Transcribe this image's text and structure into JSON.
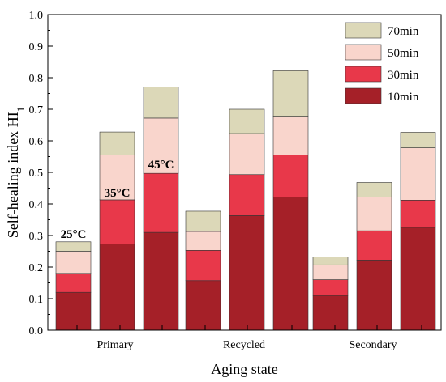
{
  "chart_data": {
    "type": "bar",
    "stacked": true,
    "xlabel": "Aging state",
    "ylabel": "Self-healing index HI",
    "ylim": [
      0,
      1.0
    ],
    "yticks": [
      0.0,
      0.1,
      0.2,
      0.3,
      0.4,
      0.5,
      0.6,
      0.7,
      0.8,
      0.9,
      1.0
    ],
    "groups": [
      "Primary",
      "Recycled",
      "Secondary"
    ],
    "temperature_annotations": [
      {
        "group": 0,
        "bar": 0,
        "label": "25°C"
      },
      {
        "group": 0,
        "bar": 1,
        "label": "35°C"
      },
      {
        "group": 0,
        "bar": 2,
        "label": "45°C"
      }
    ],
    "series": [
      {
        "name": "10min",
        "color": "#a52028",
        "values": [
          [
            0.12,
            0.273,
            0.31
          ],
          [
            0.157,
            0.363,
            0.422
          ],
          [
            0.11,
            0.222,
            0.326
          ]
        ]
      },
      {
        "name": "30min",
        "color": "#e8384a",
        "values": [
          [
            0.18,
            0.413,
            0.497
          ],
          [
            0.253,
            0.493,
            0.555
          ],
          [
            0.16,
            0.315,
            0.412
          ]
        ]
      },
      {
        "name": "50min",
        "color": "#f9d5cc",
        "values": [
          [
            0.25,
            0.555,
            0.672
          ],
          [
            0.313,
            0.623,
            0.678
          ],
          [
            0.207,
            0.422,
            0.578
          ]
        ]
      },
      {
        "name": "70min",
        "color": "#dcd8b8",
        "values": [
          [
            0.28,
            0.628,
            0.77
          ],
          [
            0.377,
            0.7,
            0.822
          ],
          [
            0.232,
            0.468,
            0.627
          ]
        ]
      }
    ],
    "legend_position": "top-right",
    "grid": false
  }
}
